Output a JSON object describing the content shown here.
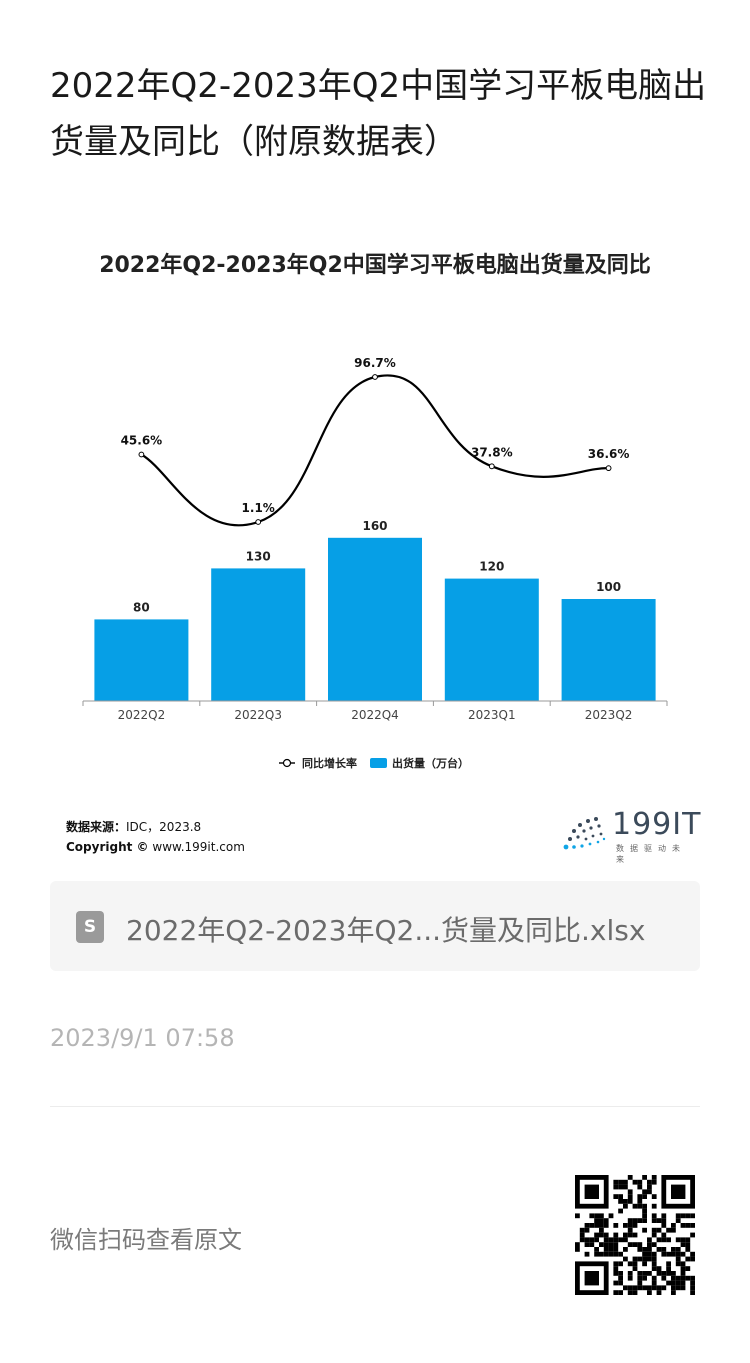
{
  "article": {
    "title": "2022年Q2-2023年Q2中国学习平板电脑出货量及同比（附原数据表）"
  },
  "chart_data": {
    "type": "bar",
    "title": "2022年Q2-2023年Q2中国学习平板电脑出货量及同比",
    "categories": [
      "2022Q2",
      "2022Q3",
      "2022Q4",
      "2023Q1",
      "2023Q2"
    ],
    "series": [
      {
        "name": "出货量（万台）",
        "type": "bar",
        "values": [
          80,
          130,
          160,
          120,
          100
        ],
        "labels": [
          "80",
          "130",
          "160",
          "120",
          "100"
        ]
      },
      {
        "name": "同比增长率",
        "type": "line",
        "values": [
          45.6,
          1.1,
          96.7,
          37.8,
          36.6
        ],
        "labels": [
          "45.6%",
          "1.1%",
          "96.7%",
          "37.8%",
          "36.6%"
        ]
      }
    ],
    "bar_color": "#069fe6",
    "line_color": "#000000",
    "legend": {
      "placement": "bottom",
      "line_label": "同比增长率",
      "bar_label": "出货量（万台）"
    }
  },
  "source": {
    "label": "数据来源：",
    "text": "IDC，2023.8",
    "copyright_label": "Copyright ©",
    "copyright_text": "www.199it.com"
  },
  "logo": {
    "text": "199IT",
    "sub": "数据驱动未来"
  },
  "attachment": {
    "file_name": "2022年Q2-2023年Q2...货量及同比.xlsx",
    "icon": "spreadsheet-file-icon",
    "icon_letter": "S"
  },
  "meta": {
    "timestamp": "2023/9/1 07:58"
  },
  "footer": {
    "qr_caption": "微信扫码查看原文",
    "qr_icon": "qr-code-icon"
  }
}
